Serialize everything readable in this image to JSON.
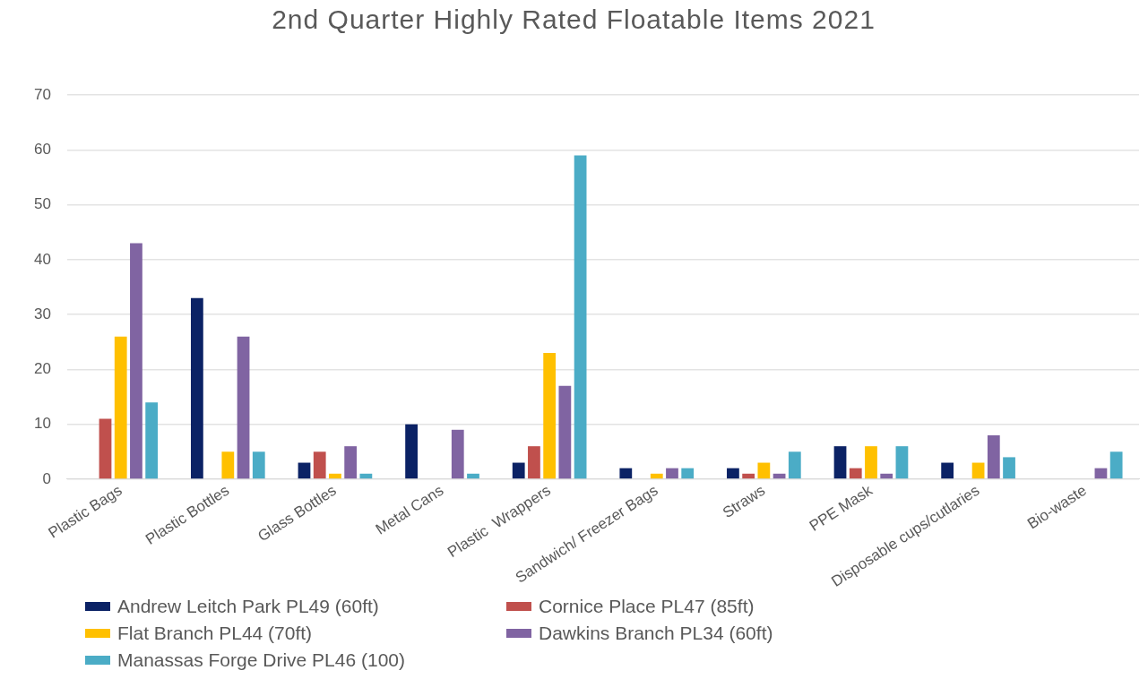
{
  "chart_data": {
    "type": "bar",
    "title": "2nd Quarter Highly Rated Floatable Items 2021",
    "categories": [
      "Plastic Bags",
      "Plastic Bottles",
      "Glass Bottles",
      "Metal Cans",
      "Plastic  Wrappers",
      "Sandwich/ Freezer Bags",
      "Straws",
      "PPE Mask",
      "Disposable cups/cutlaries",
      "Bio-waste"
    ],
    "series": [
      {
        "name": "Andrew Leitch Park PL49 (60ft)",
        "color": "#0b2265",
        "values": [
          0,
          33,
          3,
          10,
          3,
          2,
          2,
          6,
          3,
          0
        ]
      },
      {
        "name": "Cornice Place PL47 (85ft)",
        "color": "#c0504d",
        "values": [
          11,
          0,
          5,
          0,
          6,
          0,
          1,
          2,
          0,
          0
        ]
      },
      {
        "name": "Flat Branch PL44 (70ft)",
        "color": "#ffc000",
        "values": [
          26,
          5,
          1,
          0,
          23,
          1,
          3,
          6,
          3,
          0
        ]
      },
      {
        "name": "Dawkins Branch PL34 (60ft)",
        "color": "#8064a2",
        "values": [
          43,
          26,
          6,
          9,
          17,
          2,
          1,
          1,
          8,
          2
        ]
      },
      {
        "name": "Manassas Forge Drive PL46 (100)",
        "color": "#4bacc6",
        "values": [
          14,
          5,
          1,
          1,
          59,
          2,
          5,
          6,
          4,
          5
        ]
      }
    ],
    "ylim": [
      0,
      70
    ],
    "yticks": [
      0,
      10,
      20,
      30,
      40,
      50,
      60,
      70
    ],
    "grid": "y",
    "legend": "bottom left"
  }
}
